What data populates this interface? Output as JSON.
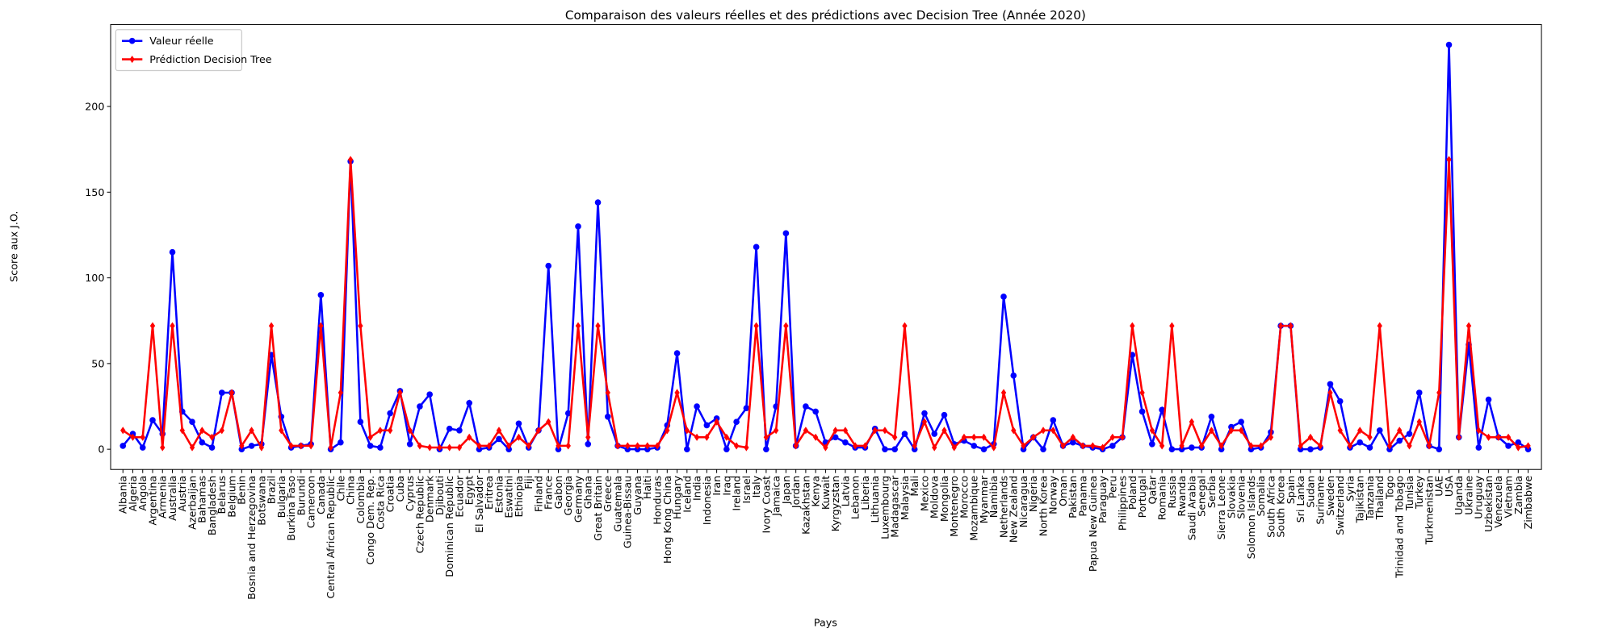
{
  "chart_data": {
    "type": "line",
    "title": "Comparaison des valeurs réelles et des prédictions avec Decision Tree (Année 2020)",
    "x_label": "Pays",
    "y_label": "Score aux J.O.",
    "categories": [
      "Albania",
      "Algeria",
      "Angola",
      "Argentina",
      "Armenia",
      "Australia",
      "Austria",
      "Azerbaijan",
      "Bahamas",
      "Bangladesh",
      "Belarus",
      "Belgium",
      "Benin",
      "Bosnia and Herzegovina",
      "Botswana",
      "Brazil",
      "Bulgaria",
      "Burkina Faso",
      "Burundi",
      "Cameroon",
      "Canada",
      "Central African Republic",
      "Chile",
      "China",
      "Colombia",
      "Congo Dem. Rep.",
      "Costa Rica",
      "Croatia",
      "Cuba",
      "Cyprus",
      "Czech Republic",
      "Denmark",
      "Djibouti",
      "Dominican Republic",
      "Ecuador",
      "Egypt",
      "El Salvador",
      "Eritrea",
      "Estonia",
      "Eswatini",
      "Ethiopia",
      "Fiji",
      "Finland",
      "France",
      "Gabon",
      "Georgia",
      "Germany",
      "Ghana",
      "Great Britain",
      "Greece",
      "Guatemala",
      "Guinea-Bissau",
      "Guyana",
      "Haiti",
      "Honduras",
      "Hong Kong China",
      "Hungary",
      "Iceland",
      "India",
      "Indonesia",
      "Iran",
      "Iraq",
      "Ireland",
      "Israel",
      "Italy",
      "Ivory Coast",
      "Jamaica",
      "Japan",
      "Jordan",
      "Kazakhstan",
      "Kenya",
      "Kuwait",
      "Kyrgyzstan",
      "Latvia",
      "Lebanon",
      "Liberia",
      "Lithuania",
      "Luxembourg",
      "Madagascar",
      "Malaysia",
      "Mali",
      "Mexico",
      "Moldova",
      "Mongolia",
      "Montenegro",
      "Morocco",
      "Mozambique",
      "Myanmar",
      "Namibia",
      "Netherlands",
      "New Zealand",
      "Nicaragua",
      "Nigeria",
      "North Korea",
      "Norway",
      "Oman",
      "Pakistan",
      "Panama",
      "Papua New Guinea",
      "Paraguay",
      "Peru",
      "Philippines",
      "Poland",
      "Portugal",
      "Qatar",
      "Romania",
      "Russia",
      "Rwanda",
      "Saudi Arabia",
      "Senegal",
      "Serbia",
      "Sierra Leone",
      "Slovakia",
      "Slovenia",
      "Solomon Islands",
      "Somalia",
      "South Africa",
      "South Korea",
      "Spain",
      "Sri Lanka",
      "Sudan",
      "Suriname",
      "Sweden",
      "Switzerland",
      "Syria",
      "Tajikistan",
      "Tanzania",
      "Thailand",
      "Togo",
      "Trinidad and Tobago",
      "Tunisia",
      "Turkey",
      "Turkmenistan",
      "UAE",
      "USA",
      "Uganda",
      "Ukraine",
      "Uruguay",
      "Uzbekistan",
      "Venezuela",
      "Vietnam",
      "Zambia",
      "Zimbabwe"
    ],
    "series": [
      {
        "name": "Valeur réelle",
        "color": "#0000ff",
        "marker": "circle",
        "values": [
          2,
          9,
          1,
          17,
          9,
          115,
          22,
          16,
          4,
          1,
          33,
          33,
          0,
          2,
          3,
          55,
          19,
          1,
          2,
          3,
          90,
          0,
          4,
          168,
          16,
          2,
          1,
          21,
          34,
          3,
          25,
          32,
          0,
          12,
          11,
          27,
          0,
          1,
          6,
          0,
          15,
          1,
          11,
          107,
          0,
          21,
          130,
          3,
          144,
          19,
          2,
          0,
          0,
          0,
          1,
          14,
          56,
          0,
          25,
          14,
          18,
          0,
          16,
          24,
          118,
          0,
          25,
          126,
          2,
          25,
          22,
          4,
          7,
          4,
          1,
          1,
          12,
          0,
          0,
          9,
          0,
          21,
          9,
          20,
          3,
          5,
          2,
          0,
          3,
          89,
          43,
          0,
          7,
          0,
          17,
          2,
          4,
          2,
          1,
          0,
          2,
          7,
          55,
          22,
          3,
          23,
          0,
          0,
          1,
          1,
          19,
          0,
          13,
          16,
          0,
          1,
          10,
          72,
          72,
          0,
          0,
          1,
          38,
          28,
          1,
          4,
          1,
          11,
          0,
          5,
          9,
          33,
          2,
          0,
          236,
          7,
          61,
          1,
          29,
          7,
          2,
          4,
          0
        ]
      },
      {
        "name": "Prédiction Decision Tree",
        "color": "#ff0000",
        "marker": "diamond",
        "values": [
          11,
          7,
          7,
          72,
          1,
          72,
          11,
          1,
          11,
          7,
          11,
          33,
          2,
          11,
          1,
          72,
          11,
          2,
          2,
          2,
          72,
          1,
          33,
          169,
          72,
          7,
          11,
          11,
          33,
          11,
          2,
          1,
          1,
          1,
          1,
          7,
          2,
          2,
          11,
          2,
          7,
          2,
          11,
          16,
          2,
          2,
          72,
          7,
          72,
          33,
          2,
          2,
          2,
          2,
          2,
          11,
          33,
          11,
          7,
          7,
          16,
          7,
          2,
          1,
          72,
          7,
          11,
          72,
          2,
          11,
          7,
          1,
          11,
          11,
          2,
          2,
          11,
          11,
          7,
          72,
          2,
          16,
          1,
          11,
          1,
          7,
          7,
          7,
          1,
          33,
          11,
          2,
          7,
          11,
          11,
          2,
          7,
          2,
          2,
          1,
          7,
          7,
          72,
          33,
          11,
          2,
          72,
          2,
          16,
          2,
          11,
          2,
          11,
          11,
          2,
          2,
          7,
          72,
          72,
          2,
          7,
          2,
          33,
          11,
          2,
          11,
          7,
          72,
          2,
          11,
          2,
          16,
          2,
          33,
          169,
          7,
          72,
          11,
          7,
          7,
          7,
          1,
          2
        ]
      }
    ],
    "ylim": [
      -11.8,
      247.8
    ],
    "yticks": [
      0,
      50,
      100,
      150,
      200
    ],
    "legend": "upper left",
    "grid": false
  }
}
